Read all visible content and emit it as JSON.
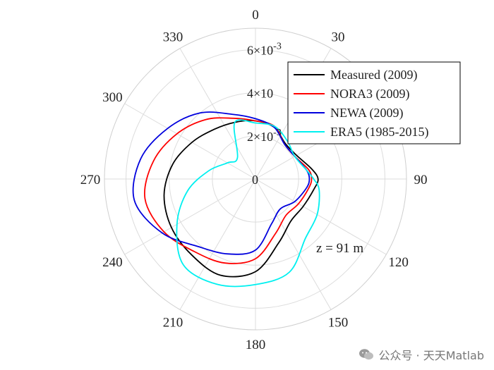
{
  "chart_data": {
    "type": "polar-line",
    "angle_direction": "clockwise",
    "angle_zero": "top",
    "angle_ticks": [
      0,
      30,
      60,
      90,
      120,
      150,
      180,
      210,
      240,
      270,
      300,
      330
    ],
    "angle_tick_labels": [
      "0",
      "30",
      "",
      "90",
      "120",
      "150",
      "180",
      "210",
      "240",
      "270",
      "300",
      "330"
    ],
    "rlim": [
      0,
      0.007
    ],
    "r_ticks": [
      0,
      0.002,
      0.004,
      0.006
    ],
    "r_tick_labels": [
      {
        "base": "0",
        "exp": ""
      },
      {
        "base": "2×10",
        "exp": "-3"
      },
      {
        "base": "4×10",
        "exp": ""
      },
      {
        "base": "6×10",
        "exp": "-3"
      }
    ],
    "annotation": "z = 91 m",
    "legend_position": "top-right",
    "series": [
      {
        "name": "Measured (2009)",
        "color": "#000000",
        "angles": [
          0,
          20,
          40,
          60,
          80,
          90,
          100,
          120,
          140,
          160,
          180,
          200,
          220,
          240,
          260,
          280,
          300,
          320,
          340,
          360
        ],
        "values": [
          0.0027,
          0.00255,
          0.00215,
          0.0022,
          0.00265,
          0.0029,
          0.00275,
          0.00255,
          0.00255,
          0.00315,
          0.0043,
          0.00475,
          0.0046,
          0.0045,
          0.0043,
          0.0039,
          0.0034,
          0.003,
          0.0028,
          0.0027
        ]
      },
      {
        "name": "NORA3 (2009)",
        "color": "#ff0000",
        "angles": [
          0,
          20,
          40,
          60,
          80,
          90,
          100,
          120,
          140,
          160,
          180,
          200,
          220,
          240,
          260,
          280,
          300,
          320,
          340,
          360
        ],
        "values": [
          0.0027,
          0.0026,
          0.0021,
          0.0021,
          0.0025,
          0.0026,
          0.0025,
          0.0023,
          0.0022,
          0.0027,
          0.0037,
          0.00415,
          0.0044,
          0.0049,
          0.0052,
          0.0048,
          0.0042,
          0.0036,
          0.003,
          0.0027
        ]
      },
      {
        "name": "NEWA (2009)",
        "color": "#0000dd",
        "angles": [
          0,
          20,
          40,
          60,
          80,
          90,
          100,
          120,
          140,
          160,
          180,
          200,
          220,
          240,
          260,
          280,
          300,
          320,
          340,
          360
        ],
        "values": [
          0.0028,
          0.00255,
          0.0021,
          0.0021,
          0.0024,
          0.0025,
          0.0024,
          0.0021,
          0.0018,
          0.0022,
          0.0033,
          0.0037,
          0.0041,
          0.005,
          0.0057,
          0.0054,
          0.0047,
          0.004,
          0.0032,
          0.0028
        ]
      },
      {
        "name": "ERA5 (1985-2015)",
        "color": "#00f0f0",
        "angles": [
          0,
          20,
          40,
          60,
          80,
          90,
          100,
          120,
          140,
          160,
          180,
          200,
          220,
          240,
          260,
          280,
          300,
          320,
          340,
          360
        ],
        "values": [
          0.0026,
          0.0026,
          0.0023,
          0.0021,
          0.0024,
          0.0027,
          0.003,
          0.0033,
          0.0036,
          0.0046,
          0.0049,
          0.0052,
          0.0052,
          0.0042,
          0.0032,
          0.0022,
          0.0015,
          0.0013,
          0.0028,
          0.0026
        ]
      }
    ]
  },
  "watermark": {
    "text": "公众号 · 天天Matlab",
    "icon": "wechat-icon"
  }
}
